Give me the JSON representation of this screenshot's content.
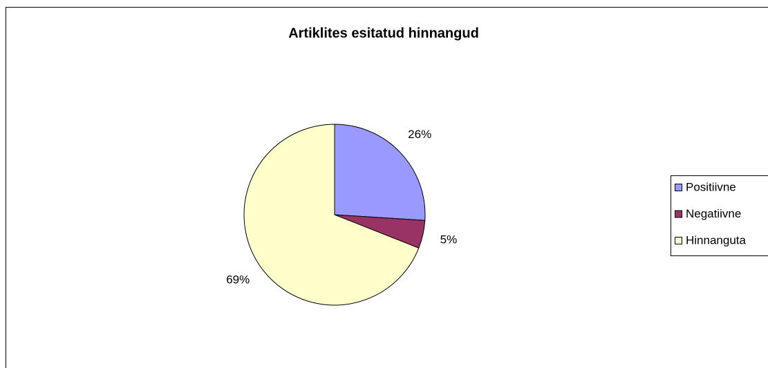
{
  "chart_data": {
    "type": "pie",
    "title": "Artiklites esitatud hinnangud",
    "categories": [
      "Positiivne",
      "Negatiivne",
      "Hinnanguta"
    ],
    "values": [
      26,
      5,
      69
    ],
    "value_labels": [
      "26%",
      "5%",
      "69%"
    ],
    "colors": [
      "#9999ff",
      "#993366",
      "#ffffcc"
    ],
    "legend": "right"
  }
}
